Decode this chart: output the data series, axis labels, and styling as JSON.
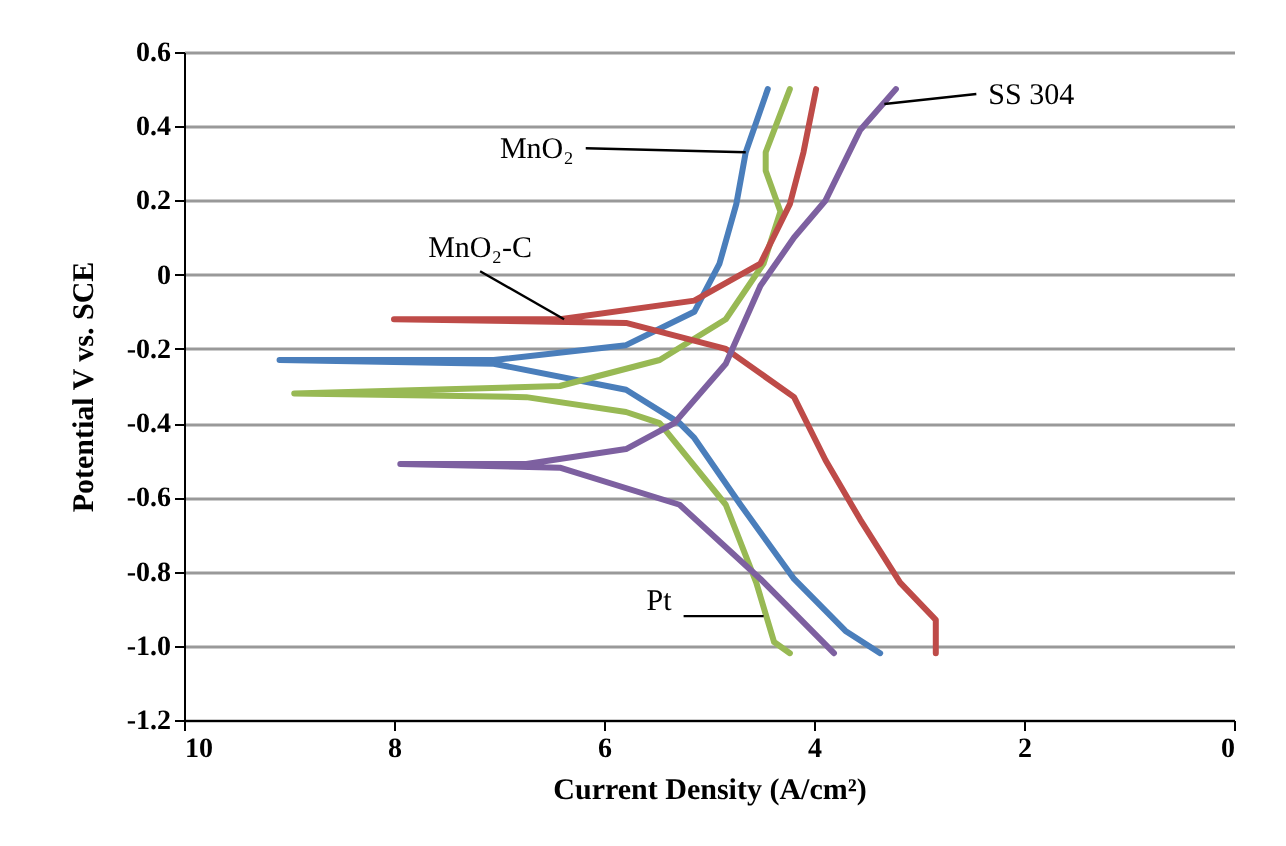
{
  "chart_data": {
    "type": "line",
    "xlabel": "Current Density (A/cm²)",
    "ylabel": "Potential V vs. SCE",
    "xlim": [
      10,
      0
    ],
    "xticks": [
      10,
      8,
      6,
      4,
      2,
      0
    ],
    "ylim": [
      -1.2,
      0.6
    ],
    "yticks": [
      0.6,
      0.4,
      0.2,
      0,
      -0.2,
      -0.4,
      -0.6,
      -0.8,
      {
        "value": -1,
        "label": "-1.0"
      },
      -1.2
    ],
    "grid": "y",
    "series": [
      {
        "color": "#4a7ebb",
        "x": [
          4.44,
          4.65,
          4.74,
          4.9,
          5.14,
          5.79,
          7.05,
          9.09,
          7.05,
          5.79,
          5.28,
          5.14,
          4.7,
          4.19,
          3.7,
          3.37
        ],
        "values": [
          0.5,
          0.33,
          0.19,
          0.03,
          -0.1,
          -0.19,
          -0.23,
          -0.23,
          -0.24,
          -0.31,
          -0.4,
          -0.44,
          -0.62,
          -0.82,
          -0.96,
          -1.02
        ]
      },
      {
        "color": "#98b954",
        "x": [
          4.23,
          4.46,
          4.46,
          4.32,
          4.48,
          4.84,
          5.47,
          6.42,
          8.95,
          6.74,
          5.79,
          5.47,
          4.84,
          4.55,
          4.38,
          4.23
        ],
        "values": [
          0.5,
          0.33,
          0.28,
          0.17,
          0.03,
          -0.12,
          -0.23,
          -0.3,
          -0.32,
          -0.33,
          -0.37,
          -0.4,
          -0.62,
          -0.83,
          -0.99,
          -1.02
        ]
      },
      {
        "color": "#be4b48",
        "x": [
          3.98,
          4.1,
          4.23,
          4.51,
          5.14,
          6.42,
          8.0,
          5.79,
          4.84,
          4.19,
          3.89,
          3.56,
          3.18,
          2.84,
          2.84
        ],
        "values": [
          0.5,
          0.33,
          0.19,
          0.03,
          -0.07,
          -0.12,
          -0.12,
          -0.13,
          -0.2,
          -0.33,
          -0.5,
          -0.66,
          -0.83,
          -0.93,
          -1.02
        ]
      },
      {
        "color": "#7d60a0",
        "x": [
          3.22,
          3.56,
          3.89,
          4.19,
          4.51,
          4.84,
          5.33,
          5.79,
          6.74,
          7.94,
          6.42,
          5.28,
          4.51,
          3.81
        ],
        "values": [
          0.5,
          0.39,
          0.2,
          0.1,
          -0.03,
          -0.24,
          -0.4,
          -0.47,
          -0.51,
          -0.51,
          -0.52,
          -0.62,
          -0.82,
          -1.02
        ]
      }
    ],
    "annotations": [
      {
        "text": "MnO₂",
        "x": 4.65,
        "y": 0.33
      },
      {
        "text": "MnO₂-C",
        "x": 6.38,
        "y": -0.12
      },
      {
        "text": "SS 304",
        "x": 3.33,
        "y": 0.46
      },
      {
        "text": "Pt",
        "x": 4.48,
        "y": -0.92
      }
    ]
  }
}
